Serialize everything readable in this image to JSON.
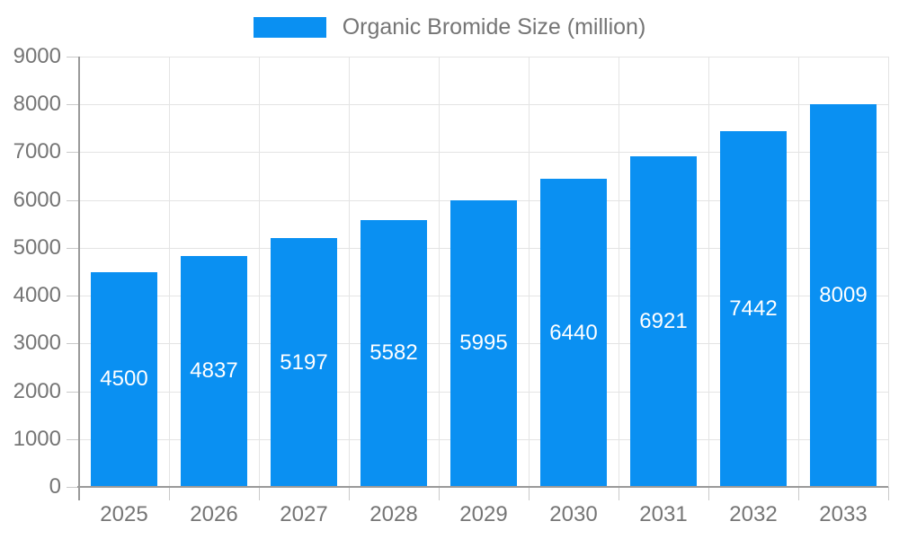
{
  "legend": {
    "label": "Organic Bromide Size (million)"
  },
  "colors": {
    "bar": "#0a90f2",
    "grid": "#e4e4e4",
    "tick": "#c9c9c9",
    "axis": "#9a9a9a",
    "text": "#757575",
    "value_label": "#ffffff",
    "background": "#ffffff"
  },
  "chart_data": {
    "type": "bar",
    "title": "",
    "xlabel": "",
    "ylabel": "",
    "categories": [
      "2025",
      "2026",
      "2027",
      "2028",
      "2029",
      "2030",
      "2031",
      "2032",
      "2033"
    ],
    "series": [
      {
        "name": "Organic Bromide Size (million)",
        "values": [
          4500,
          4837,
          5197,
          5582,
          5995,
          6440,
          6921,
          7442,
          8009
        ]
      }
    ],
    "value_labels_shown": true,
    "value_label_position": "inside-center",
    "ylim": [
      0,
      9000
    ],
    "y_ticks": [
      0,
      1000,
      2000,
      3000,
      4000,
      5000,
      6000,
      7000,
      8000,
      9000
    ],
    "grid": true,
    "legend_position": "top-center"
  }
}
